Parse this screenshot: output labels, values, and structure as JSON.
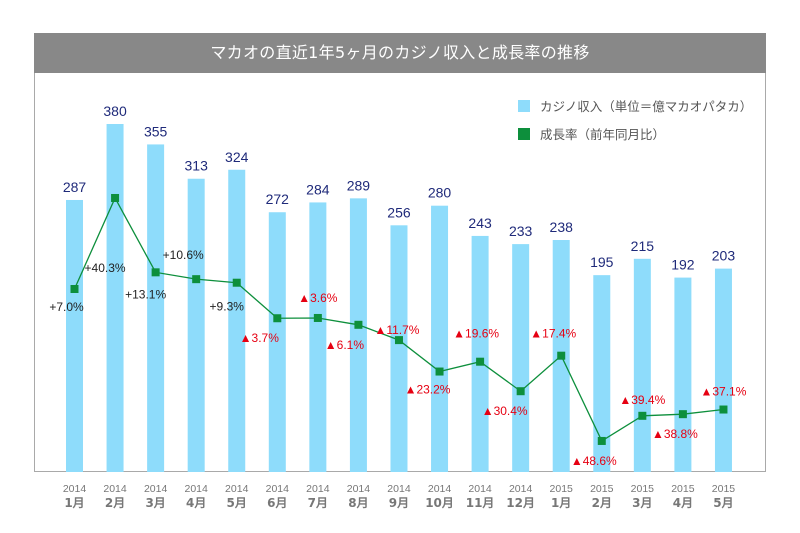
{
  "chart_data": {
    "type": "bar",
    "title": "マカオの直近1年5ヶ月のカジノ収入と成長率の推移",
    "categories": [
      {
        "year": "2014",
        "month": "1月"
      },
      {
        "year": "2014",
        "month": "2月"
      },
      {
        "year": "2014",
        "month": "3月"
      },
      {
        "year": "2014",
        "month": "4月"
      },
      {
        "year": "2014",
        "month": "5月"
      },
      {
        "year": "2014",
        "month": "6月"
      },
      {
        "year": "2014",
        "month": "7月"
      },
      {
        "year": "2014",
        "month": "8月"
      },
      {
        "year": "2014",
        "month": "9月"
      },
      {
        "year": "2014",
        "month": "10月"
      },
      {
        "year": "2014",
        "month": "11月"
      },
      {
        "year": "2014",
        "month": "12月"
      },
      {
        "year": "2015",
        "month": "1月"
      },
      {
        "year": "2015",
        "month": "2月"
      },
      {
        "year": "2015",
        "month": "3月"
      },
      {
        "year": "2015",
        "month": "4月"
      },
      {
        "year": "2015",
        "month": "5月"
      }
    ],
    "series": [
      {
        "name": "カジノ収入（単位＝億マカオパタカ）",
        "type": "bar",
        "color": "#8edcfb",
        "label_color": "#1f2a7a",
        "values": [
          287,
          380,
          355,
          313,
          324,
          272,
          284,
          289,
          256,
          280,
          243,
          233,
          238,
          195,
          215,
          192,
          203
        ],
        "labels": [
          "287",
          "380",
          "355",
          "313",
          "324",
          "272",
          "284",
          "289",
          "256",
          "280",
          "243",
          "233",
          "238",
          "195",
          "215",
          "192",
          "203"
        ]
      },
      {
        "name": "成長率（前年同月比）",
        "type": "line",
        "color": "#0d8f3c",
        "positive_label_color": "#222222",
        "negative_label_color": "#e60012",
        "values": [
          7.0,
          40.3,
          13.1,
          10.6,
          9.3,
          -3.7,
          -3.6,
          -6.1,
          -11.7,
          -23.2,
          -19.6,
          -30.4,
          -17.4,
          -48.6,
          -39.4,
          -38.8,
          -37.1
        ],
        "labels": [
          "+7.0%",
          "+40.3%",
          "+13.1%",
          "+10.6%",
          "+9.3%",
          "▲3.7%",
          "▲3.6%",
          "▲6.1%",
          "▲11.7%",
          "▲23.2%",
          "▲19.6%",
          "▲30.4%",
          "▲17.4%",
          "▲48.6%",
          "▲39.4%",
          "▲38.8%",
          "▲37.1%"
        ]
      }
    ],
    "legend": {
      "position": "top-right",
      "entries": [
        {
          "label": "カジノ収入（単位＝億マカオパタカ）",
          "color": "#8edcfb"
        },
        {
          "label": "成長率（前年同月比）",
          "color": "#0d8f3c"
        }
      ]
    },
    "grid": false,
    "xlabel": "",
    "ylabel": ""
  }
}
